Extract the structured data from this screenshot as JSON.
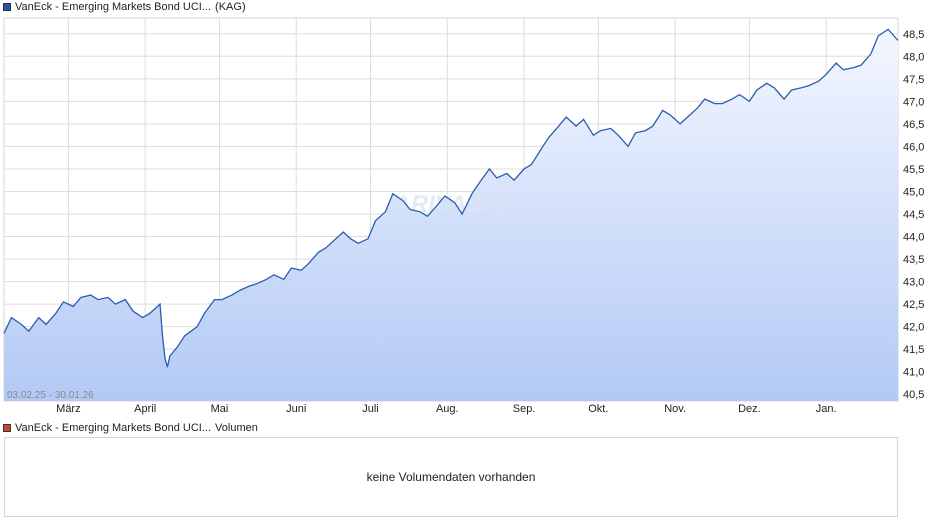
{
  "price_legend": {
    "name": "VanEck - Emerging Markets Bond UCI...",
    "tag": "(KAG)",
    "color": "#2255aa"
  },
  "volume_legend": {
    "name": "VanEck - Emerging Markets Bond UCI...",
    "label": "Volumen",
    "color": "#cc4433"
  },
  "date_range": "03.02.25 - 30.01.26",
  "watermark": "ARIVA.DE",
  "volume_message": "keine Volumendaten vorhanden",
  "colors": {
    "line": "#2a5db0",
    "fill_top": "#f4f7ff",
    "fill_bottom": "#b3c9f4",
    "grid": "#dddddd"
  },
  "chart_data": {
    "type": "area",
    "x_tick_labels": [
      "März",
      "April",
      "Mai",
      "Juni",
      "Juli",
      "Aug.",
      "Sep.",
      "Okt.",
      "Nov.",
      "Dez.",
      "Jan."
    ],
    "x_tick_dates": [
      "2025-03-01",
      "2025-04-01",
      "2025-05-01",
      "2025-06-01",
      "2025-07-01",
      "2025-08-01",
      "2025-09-01",
      "2025-10-01",
      "2025-11-01",
      "2025-12-01",
      "2026-01-01"
    ],
    "y_ticks": [
      "40,5",
      "41,0",
      "41,5",
      "42,0",
      "42,5",
      "43,0",
      "43,5",
      "44,0",
      "44,5",
      "45,0",
      "45,5",
      "46,0",
      "46,5",
      "47,0",
      "47,5",
      "48,0",
      "48,5"
    ],
    "ylim": [
      40.35,
      48.85
    ],
    "xlim": [
      "2025-02-03",
      "2026-01-30"
    ],
    "grid": true,
    "y_axis_side": "right",
    "points": [
      [
        "2025-02-03",
        41.85
      ],
      [
        "2025-02-06",
        42.2
      ],
      [
        "2025-02-10",
        42.05
      ],
      [
        "2025-02-13",
        41.9
      ],
      [
        "2025-02-17",
        42.2
      ],
      [
        "2025-02-20",
        42.05
      ],
      [
        "2025-02-24",
        42.3
      ],
      [
        "2025-02-27",
        42.55
      ],
      [
        "2025-03-03",
        42.45
      ],
      [
        "2025-03-06",
        42.65
      ],
      [
        "2025-03-10",
        42.7
      ],
      [
        "2025-03-13",
        42.6
      ],
      [
        "2025-03-17",
        42.65
      ],
      [
        "2025-03-20",
        42.5
      ],
      [
        "2025-03-24",
        42.6
      ],
      [
        "2025-03-27",
        42.35
      ],
      [
        "2025-03-31",
        42.2
      ],
      [
        "2025-04-03",
        42.3
      ],
      [
        "2025-04-07",
        42.5
      ],
      [
        "2025-04-08",
        41.8
      ],
      [
        "2025-04-09",
        41.3
      ],
      [
        "2025-04-10",
        41.1
      ],
      [
        "2025-04-11",
        41.35
      ],
      [
        "2025-04-14",
        41.55
      ],
      [
        "2025-04-17",
        41.8
      ],
      [
        "2025-04-22",
        42.0
      ],
      [
        "2025-04-25",
        42.3
      ],
      [
        "2025-04-29",
        42.6
      ],
      [
        "2025-05-02",
        42.6
      ],
      [
        "2025-05-06",
        42.7
      ],
      [
        "2025-05-09",
        42.8
      ],
      [
        "2025-05-13",
        42.9
      ],
      [
        "2025-05-16",
        42.95
      ],
      [
        "2025-05-20",
        43.05
      ],
      [
        "2025-05-23",
        43.15
      ],
      [
        "2025-05-27",
        43.05
      ],
      [
        "2025-05-30",
        43.3
      ],
      [
        "2025-06-03",
        43.25
      ],
      [
        "2025-06-06",
        43.4
      ],
      [
        "2025-06-10",
        43.65
      ],
      [
        "2025-06-13",
        43.75
      ],
      [
        "2025-06-17",
        43.95
      ],
      [
        "2025-06-20",
        44.1
      ],
      [
        "2025-06-23",
        43.95
      ],
      [
        "2025-06-26",
        43.85
      ],
      [
        "2025-06-30",
        43.95
      ],
      [
        "2025-07-03",
        44.35
      ],
      [
        "2025-07-07",
        44.55
      ],
      [
        "2025-07-10",
        44.95
      ],
      [
        "2025-07-14",
        44.8
      ],
      [
        "2025-07-17",
        44.6
      ],
      [
        "2025-07-21",
        44.55
      ],
      [
        "2025-07-24",
        44.45
      ],
      [
        "2025-07-28",
        44.7
      ],
      [
        "2025-07-31",
        44.9
      ],
      [
        "2025-08-04",
        44.75
      ],
      [
        "2025-08-07",
        44.5
      ],
      [
        "2025-08-11",
        44.95
      ],
      [
        "2025-08-14",
        45.2
      ],
      [
        "2025-08-18",
        45.5
      ],
      [
        "2025-08-21",
        45.3
      ],
      [
        "2025-08-25",
        45.4
      ],
      [
        "2025-08-28",
        45.25
      ],
      [
        "2025-09-01",
        45.5
      ],
      [
        "2025-09-04",
        45.6
      ],
      [
        "2025-09-08",
        45.95
      ],
      [
        "2025-09-11",
        46.2
      ],
      [
        "2025-09-15",
        46.45
      ],
      [
        "2025-09-18",
        46.65
      ],
      [
        "2025-09-22",
        46.45
      ],
      [
        "2025-09-25",
        46.6
      ],
      [
        "2025-09-29",
        46.25
      ],
      [
        "2025-10-02",
        46.35
      ],
      [
        "2025-10-06",
        46.4
      ],
      [
        "2025-10-09",
        46.25
      ],
      [
        "2025-10-13",
        46.0
      ],
      [
        "2025-10-16",
        46.3
      ],
      [
        "2025-10-20",
        46.35
      ],
      [
        "2025-10-23",
        46.45
      ],
      [
        "2025-10-27",
        46.8
      ],
      [
        "2025-10-30",
        46.7
      ],
      [
        "2025-11-03",
        46.5
      ],
      [
        "2025-11-06",
        46.65
      ],
      [
        "2025-11-10",
        46.85
      ],
      [
        "2025-11-13",
        47.05
      ],
      [
        "2025-11-17",
        46.95
      ],
      [
        "2025-11-20",
        46.95
      ],
      [
        "2025-11-24",
        47.05
      ],
      [
        "2025-11-27",
        47.15
      ],
      [
        "2025-12-01",
        47.0
      ],
      [
        "2025-12-04",
        47.25
      ],
      [
        "2025-12-08",
        47.4
      ],
      [
        "2025-12-11",
        47.3
      ],
      [
        "2025-12-15",
        47.05
      ],
      [
        "2025-12-18",
        47.25
      ],
      [
        "2025-12-22",
        47.3
      ],
      [
        "2025-12-25",
        47.35
      ],
      [
        "2025-12-29",
        47.45
      ],
      [
        "2026-01-01",
        47.6
      ],
      [
        "2026-01-05",
        47.85
      ],
      [
        "2026-01-08",
        47.7
      ],
      [
        "2026-01-12",
        47.75
      ],
      [
        "2026-01-15",
        47.8
      ],
      [
        "2026-01-19",
        48.05
      ],
      [
        "2026-01-22",
        48.45
      ],
      [
        "2026-01-26",
        48.6
      ],
      [
        "2026-01-30",
        48.35
      ]
    ]
  }
}
